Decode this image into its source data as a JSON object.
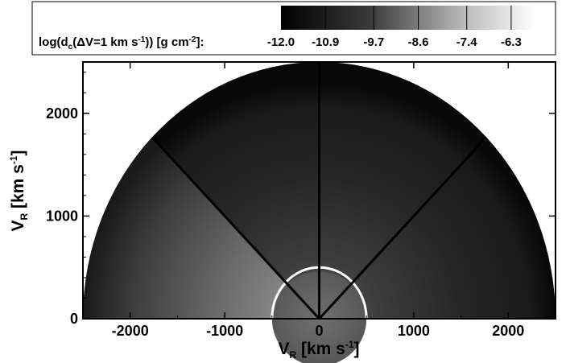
{
  "chart_data": {
    "type": "heatmap",
    "subtype": "half-disk velocity-space column density map",
    "colorbar": {
      "label_parts": [
        "log(d",
        "c",
        "(ΔV=1 km s",
        "-1",
        ")) [g cm",
        "-2",
        "]:"
      ],
      "ticks": [
        -12.0,
        -10.9,
        -9.7,
        -8.6,
        -7.4,
        -6.3
      ],
      "tick_labels": [
        "-12.0",
        "-10.9",
        "-9.7",
        "-8.6",
        "-7.4",
        "-6.3"
      ],
      "range": [
        -12.0,
        -5.7
      ],
      "colormap": "grayscale, black (low) to white (high)"
    },
    "xaxis": {
      "label_main": "V",
      "label_sub": "R",
      "label_unit": " [km s",
      "label_sup": "-1",
      "label_end": "]",
      "range": [
        -2500,
        2500
      ],
      "ticks": [
        -2000,
        -1000,
        0,
        1000,
        2000
      ],
      "tick_labels": [
        "-2000",
        "-1000",
        "0",
        "1000",
        "2000"
      ]
    },
    "yaxis": {
      "label_main": "V",
      "label_sub": "R",
      "label_unit": " [km s",
      "label_sup": "-1",
      "label_end": "]",
      "range": [
        0,
        2500
      ],
      "ticks": [
        0,
        1000,
        2000
      ],
      "tick_labels": [
        "0",
        "1000",
        "2000"
      ]
    },
    "disk": {
      "radius": 2500,
      "inner_ring_radius": 500
    },
    "lines": [
      {
        "angle_deg": 90
      },
      {
        "angle_deg": 45
      },
      {
        "angle_deg": 135
      }
    ],
    "grid": false,
    "legend": "colorbar at top"
  }
}
